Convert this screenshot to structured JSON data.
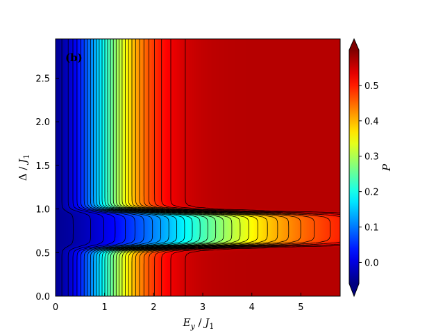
{
  "chart_data": {
    "type": "heatmap",
    "panel_label": "(b)",
    "xlabel": "E_y / J_1",
    "ylabel": "Δ / J_1",
    "colorbar_label": "P",
    "xlim": [
      0,
      5.8
    ],
    "ylim": [
      0,
      2.95
    ],
    "xticks": [
      "0",
      "1",
      "2",
      "3",
      "4",
      "5"
    ],
    "yticks": [
      "0.0",
      "0.5",
      "1.0",
      "1.5",
      "2.0",
      "2.5"
    ],
    "colorbar_ticks": [
      "0.0",
      "0.1",
      "0.2",
      "0.3",
      "0.4",
      "0.5"
    ],
    "colorbar_range": [
      -0.06,
      0.6
    ],
    "colormap": "jet",
    "contour_lines": true,
    "contour_color": "#000000",
    "features": {
      "max_value_approx": 0.56,
      "max_location": {
        "x": 5.8,
        "y": 0.8
      },
      "min_value_approx": -0.04,
      "min_location_x": 0,
      "pinch_line_y": [
        0.5,
        1.0
      ],
      "pinch_point": {
        "x": 1.75,
        "y": 0.75
      }
    }
  }
}
